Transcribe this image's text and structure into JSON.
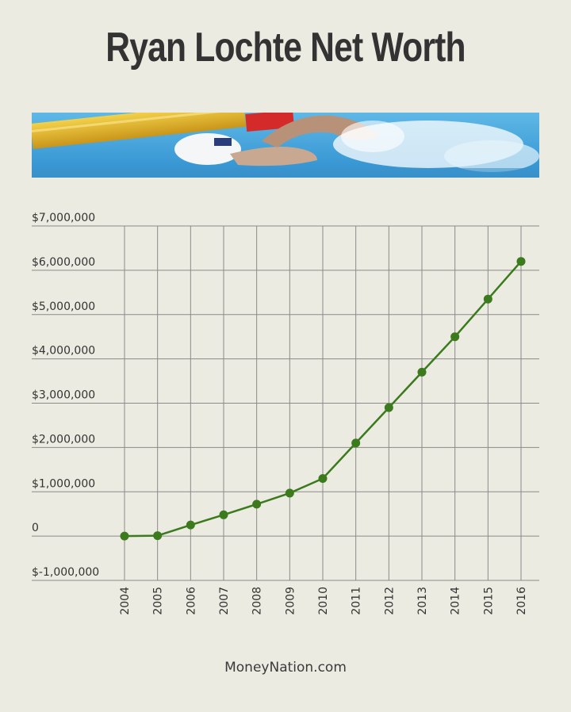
{
  "chart_data": {
    "type": "line",
    "title": "Ryan Lochte Net Worth",
    "x": [
      "2004",
      "2005",
      "2006",
      "2007",
      "2008",
      "2009",
      "2010",
      "2011",
      "2012",
      "2013",
      "2014",
      "2015",
      "2016"
    ],
    "series": [
      {
        "values": [
          0,
          10000,
          250000,
          480000,
          720000,
          970000,
          1300000,
          2100000,
          2900000,
          3700000,
          4500000,
          5350000,
          6200000
        ]
      }
    ],
    "yticks": [
      "$7,000,000",
      "$6,000,000",
      "$5,000,000",
      "$4,000,000",
      "$3,000,000",
      "$2,000,000",
      "$1,000,000",
      "0",
      "$-1,000,000"
    ],
    "ylim": [
      -1000000,
      7000000
    ],
    "grid": true,
    "xlabel": "",
    "ylabel": ""
  },
  "colors": {
    "background": "#ecebe2",
    "line": "#3c7a1e",
    "grid": "#8a8a8a",
    "text": "#333333"
  },
  "banner": {
    "image": "swimmer-in-pool-photo"
  },
  "footer": {
    "source": "MoneyNation.com"
  }
}
